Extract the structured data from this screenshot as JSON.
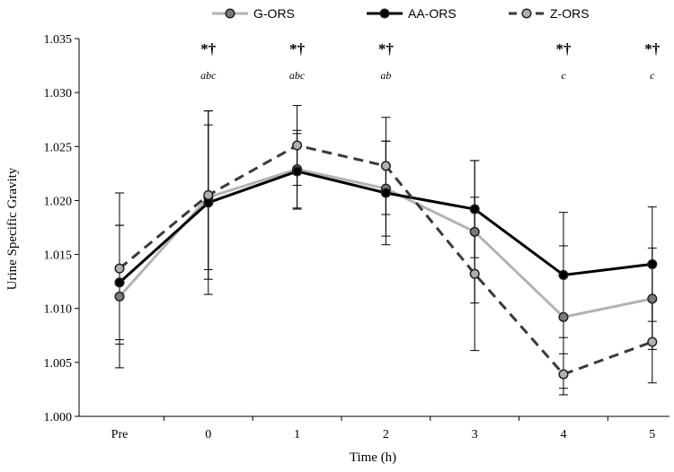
{
  "chart_data": {
    "type": "line",
    "title": "",
    "xlabel": "Time (h)",
    "ylabel": "Urine Specific Gravity",
    "categories": [
      "Pre",
      "0",
      "1",
      "2",
      "3",
      "4",
      "5"
    ],
    "ylim": [
      1.0,
      1.035
    ],
    "yticks": [
      "1.000",
      "1.005",
      "1.010",
      "1.015",
      "1.020",
      "1.025",
      "1.030",
      "1.035"
    ],
    "grid": false,
    "legend_position": "top",
    "series": [
      {
        "name": "G-ORS",
        "values": [
          1.0111,
          1.0203,
          1.0229,
          1.0211,
          1.0171,
          1.0092,
          1.0109
        ],
        "error": [
          0.0066,
          0.0067,
          0.0036,
          0.0044,
          0.0066,
          0.0066,
          0.0047
        ],
        "line_color": "#b3b3b3",
        "marker_fill": "#7a7a7a",
        "dash": false
      },
      {
        "name": "AA-ORS",
        "values": [
          1.0124,
          1.0198,
          1.0227,
          1.0207,
          1.0192,
          1.0131,
          1.0141
        ],
        "error": [
          0.0053,
          0.0085,
          0.0035,
          0.0048,
          0.0045,
          0.0058,
          0.0053
        ],
        "line_color": "#000000",
        "marker_fill": "#000000",
        "dash": false
      },
      {
        "name": "Z-ORS",
        "values": [
          1.0137,
          1.0205,
          1.0251,
          1.0232,
          1.0132,
          1.0039,
          1.0069
        ],
        "error": [
          0.007,
          0.0078,
          0.0037,
          0.0045,
          0.0071,
          0.0019,
          0.0038
        ],
        "line_color": "#3a3a3a",
        "marker_fill": "#b0b0b0",
        "dash": true
      }
    ],
    "annotations": [
      {
        "category": "0",
        "symbols": "*†",
        "letters": "abc"
      },
      {
        "category": "1",
        "symbols": "*†",
        "letters": "abc"
      },
      {
        "category": "2",
        "symbols": "*†",
        "letters": "ab"
      },
      {
        "category": "4",
        "symbols": "*†",
        "letters": "c"
      },
      {
        "category": "5",
        "symbols": "*†",
        "letters": "c"
      }
    ]
  }
}
